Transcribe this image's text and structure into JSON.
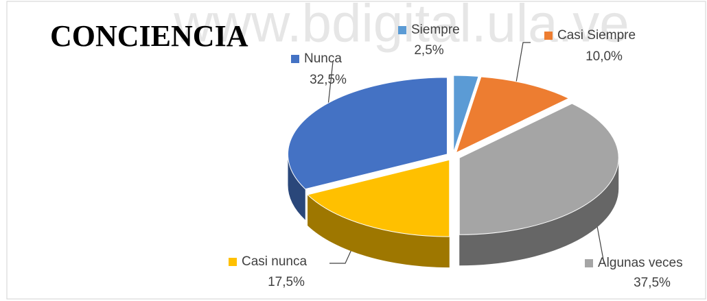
{
  "watermark": "www.bdigital.ula.ve",
  "chart_data": {
    "type": "pie",
    "title": "CONCIENCIA",
    "categories": [
      "Siempre",
      "Casi Siempre",
      "Algunas veces",
      "Casi nunca",
      "Nunca"
    ],
    "values": [
      2.5,
      10.0,
      37.5,
      17.5,
      32.5
    ],
    "value_labels": [
      "2,5%",
      "10,0%",
      "37,5%",
      "17,5%",
      "32,5%"
    ],
    "colors": [
      "#5b9bd5",
      "#ed7d31",
      "#a5a5a5",
      "#ffc000",
      "#4472c4"
    ]
  }
}
